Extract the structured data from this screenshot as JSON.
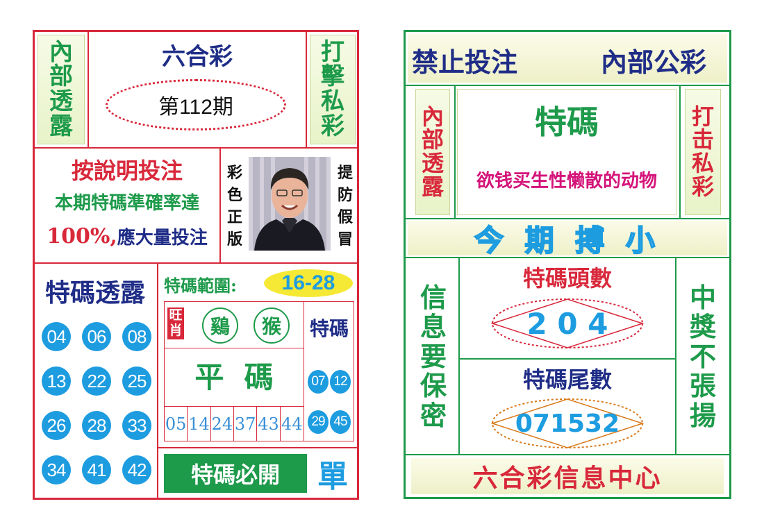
{
  "colors": {
    "red": "#d8283a",
    "green": "#1d9a4a",
    "blue": "#1d9ce0",
    "navy": "#1f2d87",
    "magenta": "#d4147a",
    "yellow_band": "#f6f6d2"
  },
  "left": {
    "top_left_vertical": [
      "內",
      "部",
      "透",
      "露"
    ],
    "title": "六合彩",
    "issue": "第112期",
    "top_right_vertical": [
      "打",
      "擊",
      "私",
      "彩"
    ],
    "instruction_head": "按說明投注",
    "instruction_line1": "本期特碼準確率達",
    "instruction_pct": "100%,",
    "instruction_line2": "應大量投注",
    "color_edition_vertical": [
      "彩",
      "色",
      "正",
      "版"
    ],
    "beware_vertical": [
      "提",
      "防",
      "假",
      "冒"
    ],
    "leak_title": "特碼透露",
    "numbers": [
      "04",
      "06",
      "08",
      "13",
      "22",
      "25",
      "26",
      "28",
      "33",
      "34",
      "41",
      "42"
    ],
    "range_label": "特碼範圍:",
    "range_value": "16-28",
    "wang_xiao_vertical": [
      "旺",
      "肖"
    ],
    "zodiac": [
      "鷄",
      "猴"
    ],
    "special_label": "特碼",
    "flat_label": "平  碼",
    "special_numbers": [
      "07",
      "12",
      "29",
      "45"
    ],
    "flat_numbers": [
      "05",
      "14",
      "24",
      "37",
      "43",
      "44"
    ],
    "must_open_label": "特碼必開",
    "must_open_value": "單"
  },
  "right": {
    "header_left": "禁止投注",
    "header_right": "內部公彩",
    "left_vertical": [
      "內",
      "部",
      "透",
      "露"
    ],
    "special_title": "特碼",
    "hint": "欲钱买生性懒散的动物",
    "right_vertical": [
      "打",
      "击",
      "私",
      "彩"
    ],
    "banner": "今 期 搏 小",
    "info_vertical": [
      "信",
      "息",
      "要",
      "保",
      "密"
    ],
    "head_label": "特碼頭數",
    "head_value": "2 0 4",
    "tail_label": "特碼尾數",
    "tail_value": "071532",
    "win_vertical": [
      "中",
      "獎",
      "不",
      "張",
      "揚"
    ],
    "footer": "六合彩信息中心"
  }
}
